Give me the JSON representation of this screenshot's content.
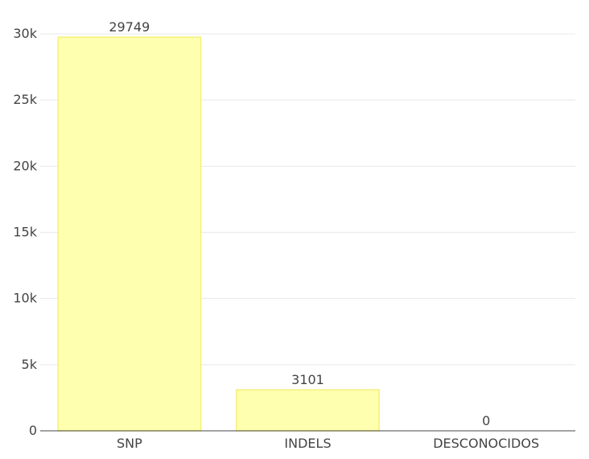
{
  "chart_data": {
    "type": "bar",
    "categories": [
      "SNP",
      "INDELS",
      "DESCONOCIDOS"
    ],
    "values": [
      29749,
      3101,
      0
    ],
    "data_labels": [
      "29749",
      "3101",
      "0"
    ],
    "title": "",
    "xlabel": "",
    "ylabel": "",
    "ylim": [
      0,
      30000
    ],
    "yticks": [
      0,
      5000,
      10000,
      15000,
      20000,
      25000,
      30000
    ],
    "ytick_labels": [
      "0",
      "5k",
      "10k",
      "15k",
      "20k",
      "25k",
      "30k"
    ],
    "grid": true,
    "legend": "none",
    "colors": {
      "bar_fill": "#ffffb0",
      "bar_stroke": "#f5f07a",
      "grid": "#e8e8e8",
      "axis": "#444444",
      "text": "#444444"
    }
  }
}
